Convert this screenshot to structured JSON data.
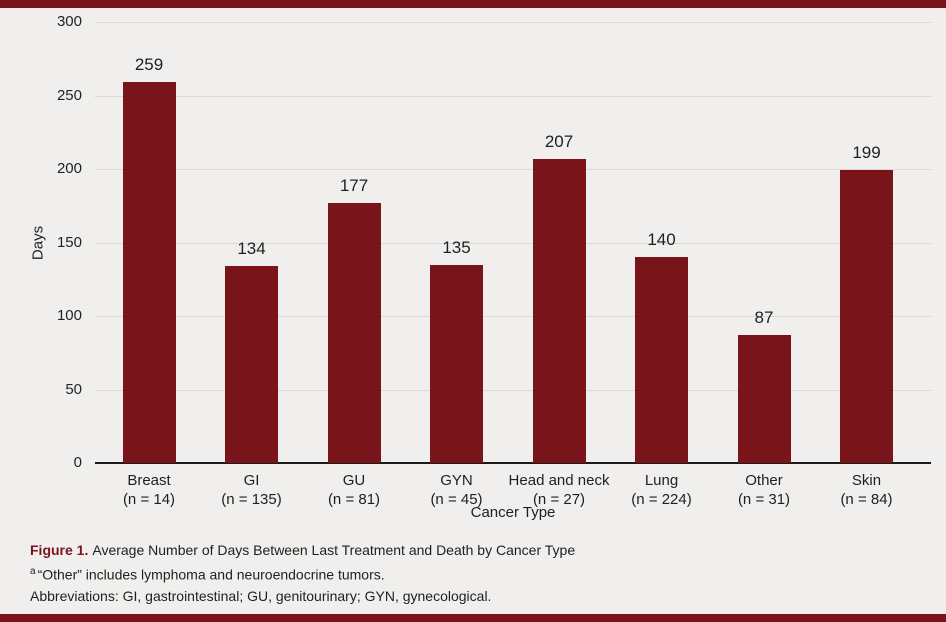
{
  "page": {
    "background": "#f0efed",
    "accent_color": "#7a141b"
  },
  "chart_data": {
    "type": "bar",
    "categories": [
      "Breast",
      "GI",
      "GU",
      "GYN",
      "Head and neck",
      "Lung",
      "Other",
      "Skin"
    ],
    "n_labels": [
      "(n = 14)",
      "(n = 135)",
      "(n = 81)",
      "(n = 45)",
      "(n = 27)",
      "(n = 224)",
      "(n = 31)",
      "(n = 84)"
    ],
    "values": [
      259,
      134,
      177,
      135,
      207,
      140,
      87,
      199
    ],
    "value_labels": [
      "259",
      "134",
      "177",
      "135",
      "207",
      "140",
      "87",
      "199"
    ],
    "title": "",
    "xlabel": "Cancer Type",
    "ylabel": "Days",
    "ylim": [
      0,
      300
    ],
    "yticks": [
      0,
      50,
      100,
      150,
      200,
      250,
      300
    ],
    "bar_color": "#7a141b",
    "grid": true,
    "legend": false
  },
  "caption": {
    "figure_label": "Figure 1.",
    "figure_text": "Average Number of Days Between Last Treatment and Death by Cancer Type",
    "footnote_marker": "a",
    "footnote_text": "“Other” includes lymphoma and neuroendocrine tumors.",
    "abbreviations": "Abbreviations: GI, gastrointestinal; GU, genitourinary; GYN, gynecological."
  }
}
